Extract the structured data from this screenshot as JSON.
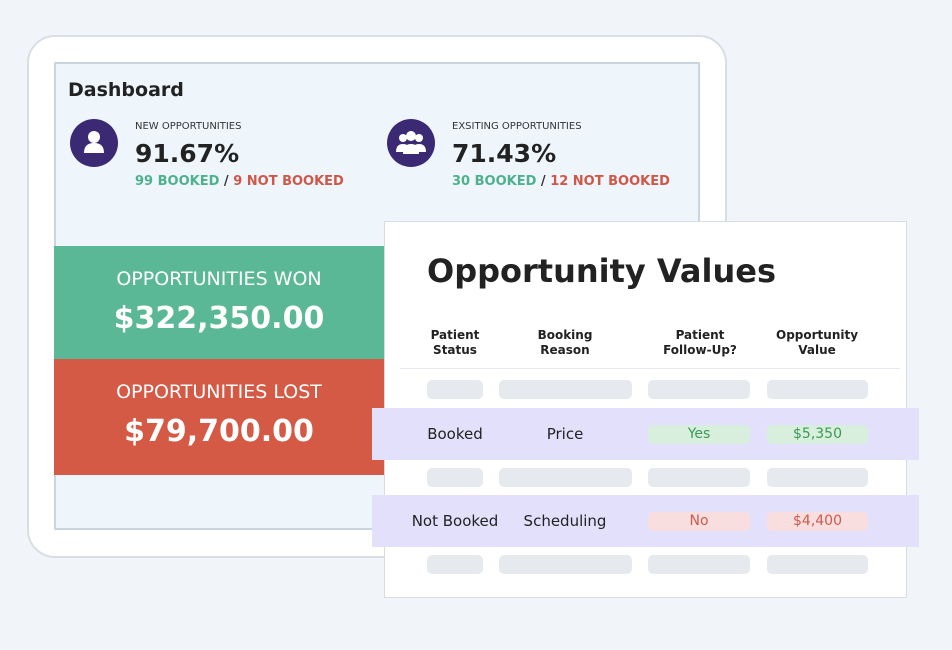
{
  "dashboard": {
    "title": "Dashboard",
    "stats": [
      {
        "label": "NEW OPPORTUNITIES",
        "value": "91.67%",
        "booked": "99 BOOKED",
        "separator": "/",
        "not_booked": "9 NOT BOOKED"
      },
      {
        "label": "EXSITING OPPORTUNITIES",
        "value": "71.43%",
        "booked": "30 BOOKED",
        "separator": "/",
        "not_booked": "12 NOT BOOKED"
      }
    ],
    "won": {
      "label": "OPPORTUNITIES WON",
      "amount": "$322,350.00"
    },
    "lost": {
      "label": "OPPORTUNITIES LOST",
      "amount": "$79,700.00"
    }
  },
  "table": {
    "title": "Opportunity Values",
    "headers": [
      "Patient Status",
      "Booking Reason",
      "Patient Follow-Up?",
      "Opportunity Value"
    ],
    "rows": [
      [
        "Booked",
        "Price",
        "Yes",
        "$5,350"
      ],
      [
        "Not Booked",
        "Scheduling",
        "No",
        "$4,400"
      ]
    ]
  }
}
